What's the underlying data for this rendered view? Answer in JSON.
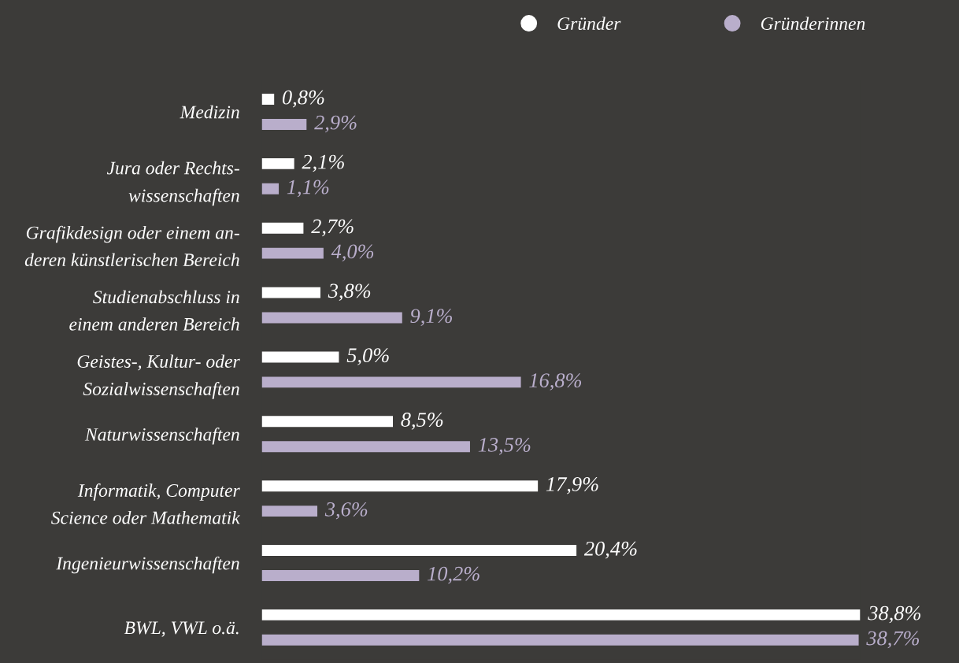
{
  "chart_data": {
    "type": "bar",
    "orientation": "horizontal",
    "categories": [
      "Medizin",
      "Jura oder Rechts-\nwissenschaften",
      "Grafikdesign oder einem an-\nderen künstlerischen Bereich",
      "Studienabschluss in\neinem anderen Bereich",
      "Geistes-, Kultur- oder\nSozialwissenschaften",
      "Naturwissenschaften",
      "Informatik, Computer\nScience oder Mathematik",
      "Ingenieurwissenschaften",
      "BWL, VWL o.ä."
    ],
    "series": [
      {
        "name": "Gründer",
        "color": "#ffffff",
        "values": [
          0.8,
          2.1,
          2.7,
          3.8,
          5.0,
          8.5,
          17.9,
          20.4,
          38.8
        ],
        "value_labels": [
          "0,8%",
          "2,1%",
          "2,7%",
          "3,8%",
          "5,0%",
          "8,5%",
          "17,9%",
          "20,4%",
          "38,8%"
        ]
      },
      {
        "name": "Gründerinnen",
        "color": "#b9aecb",
        "values": [
          2.9,
          1.1,
          4.0,
          9.1,
          16.8,
          13.5,
          3.6,
          10.2,
          38.7
        ],
        "value_labels": [
          "2,9%",
          "1,1%",
          "4,0%",
          "9,1%",
          "16,8%",
          "13,5%",
          "3,6%",
          "10,2%",
          "38,7%"
        ]
      }
    ],
    "legend": "top right",
    "grid": false,
    "marker": "circle"
  }
}
